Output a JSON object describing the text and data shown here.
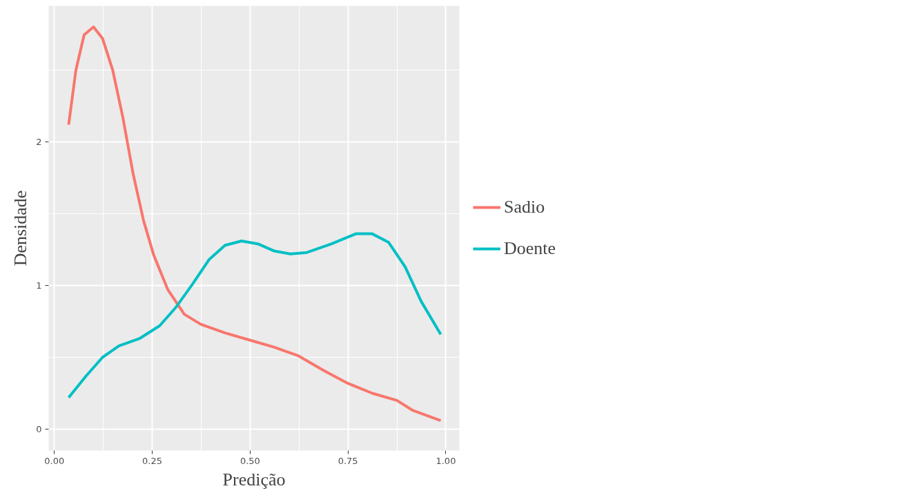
{
  "chart_data": {
    "type": "line",
    "xlabel": "Predição",
    "ylabel": "Densidade",
    "xlim": [
      -0.0146,
      1.0345
    ],
    "ylim": [
      -0.149,
      2.947
    ],
    "xticks": [
      {
        "value": 0,
        "label": "0.00"
      },
      {
        "value": 0.25,
        "label": "0.25"
      },
      {
        "value": 0.5,
        "label": "0.50"
      },
      {
        "value": 0.75,
        "label": "0.75"
      },
      {
        "value": 1,
        "label": "1.00"
      }
    ],
    "yticks": [
      0,
      1,
      2
    ],
    "grid": true,
    "legend": "right",
    "line_style": "solid",
    "marker": "none",
    "series": [
      {
        "name": "Sadio",
        "color": "#f8766d",
        "x": [
          0.0365,
          0.055,
          0.076,
          0.1,
          0.123,
          0.149,
          0.175,
          0.201,
          0.228,
          0.254,
          0.29,
          0.332,
          0.374,
          0.436,
          0.499,
          0.562,
          0.624,
          0.687,
          0.749,
          0.812,
          0.875,
          0.916,
          0.987
        ],
        "values": [
          2.12,
          2.5,
          2.745,
          2.8,
          2.72,
          2.5,
          2.17,
          1.78,
          1.45,
          1.21,
          0.97,
          0.8,
          0.73,
          0.67,
          0.62,
          0.57,
          0.51,
          0.41,
          0.32,
          0.25,
          0.2,
          0.13,
          0.06
        ]
      },
      {
        "name": "Doente",
        "color": "#00bfc4",
        "x": [
          0.0365,
          0.081,
          0.123,
          0.165,
          0.217,
          0.269,
          0.311,
          0.353,
          0.395,
          0.436,
          0.478,
          0.52,
          0.562,
          0.603,
          0.645,
          0.708,
          0.77,
          0.812,
          0.854,
          0.896,
          0.937,
          0.987
        ],
        "values": [
          0.22,
          0.37,
          0.5,
          0.58,
          0.63,
          0.72,
          0.85,
          1.01,
          1.18,
          1.28,
          1.31,
          1.29,
          1.24,
          1.22,
          1.23,
          1.29,
          1.36,
          1.36,
          1.3,
          1.13,
          0.89,
          0.66
        ]
      }
    ]
  }
}
